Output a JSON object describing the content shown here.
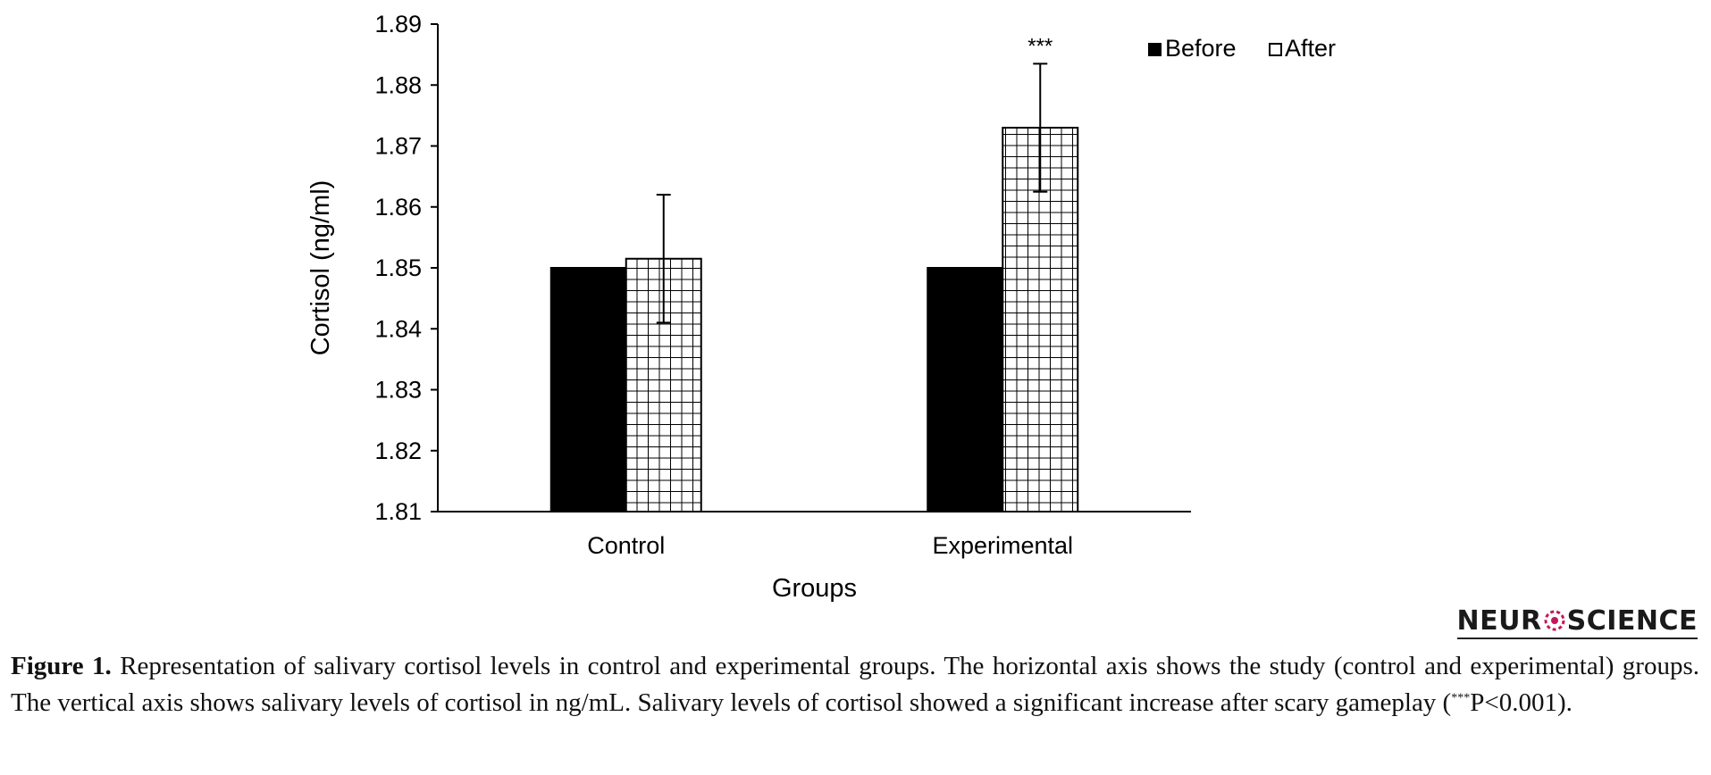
{
  "chart_data": {
    "type": "bar",
    "categories": [
      "Control",
      "Experimental"
    ],
    "series": [
      {
        "name": "Before",
        "values": [
          1.85,
          1.85
        ],
        "errors": [
          null,
          null
        ],
        "fill": "solid"
      },
      {
        "name": "After",
        "values": [
          1.8515,
          1.873
        ],
        "errors": [
          0.0105,
          0.0105
        ],
        "fill": "grid"
      }
    ],
    "xlabel": "Groups",
    "ylabel": "Cortisol (ng/ml)",
    "ylim": [
      1.81,
      1.89
    ],
    "yticks": [
      "1.81",
      "1.82",
      "1.83",
      "1.84",
      "1.85",
      "1.86",
      "1.87",
      "1.88",
      "1.89"
    ],
    "annotations": [
      {
        "category": "Experimental",
        "series": "After",
        "text": "***"
      }
    ],
    "legend_position": "top-right",
    "grid": false,
    "colors": {
      "before": "#000000",
      "after_lines": "#000000",
      "after_bg": "#ffffff"
    }
  },
  "logo": {
    "text": "NEUR",
    "text2": "SCIENCE"
  },
  "caption": {
    "label": "Figure 1.",
    "text": "Representation of salivary cortisol levels in control and experimental groups. The horizontal axis shows the study (control and experimental) groups. The vertical axis shows salivary levels of cortisol in ng/mL. Salivary levels of cortisol showed a significant increase after scary gameplay (",
    "sig": "***",
    "tail": "P<0.001)."
  }
}
